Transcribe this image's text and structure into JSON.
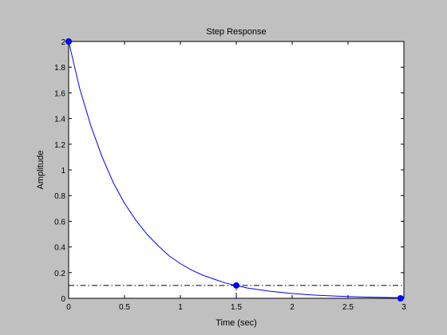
{
  "window": {
    "background": "#c0c0c0"
  },
  "chart_data": {
    "type": "line",
    "title": "Step Response",
    "xlabel": "Time (sec)",
    "ylabel": "Amplitude",
    "xlim": [
      0,
      3
    ],
    "ylim": [
      0,
      2
    ],
    "xticks": [
      0,
      0.5,
      1,
      1.5,
      2,
      2.5,
      3
    ],
    "xtick_labels": [
      "0",
      "0.5",
      "1",
      "1.5",
      "2",
      "2.5",
      "3"
    ],
    "yticks": [
      0,
      0.2,
      0.4,
      0.6,
      0.8,
      1,
      1.2,
      1.4,
      1.6,
      1.8,
      2
    ],
    "ytick_labels": [
      "0",
      "0.2",
      "0.4",
      "0.6",
      "0.8",
      "1",
      "1.2",
      "1.4",
      "1.6",
      "1.8",
      "2"
    ],
    "grid": false,
    "legend": "none",
    "series": [
      {
        "color": "#0000ff",
        "x": [
          0,
          0.1,
          0.2,
          0.3,
          0.4,
          0.5,
          0.6,
          0.7,
          0.8,
          0.9,
          1.0,
          1.1,
          1.2,
          1.3,
          1.4,
          1.5,
          1.6,
          1.8,
          2.0,
          2.2,
          2.4,
          2.6,
          2.8,
          3.0
        ],
        "y": [
          2.0,
          1.63,
          1.34,
          1.1,
          0.9,
          0.74,
          0.61,
          0.5,
          0.41,
          0.33,
          0.27,
          0.22,
          0.18,
          0.15,
          0.12,
          0.1,
          0.08,
          0.055,
          0.037,
          0.025,
          0.017,
          0.011,
          0.007,
          0.005
        ]
      }
    ],
    "markers": [
      {
        "x": 0,
        "y": 2.0
      },
      {
        "x": 1.5,
        "y": 0.1
      },
      {
        "x": 2.97,
        "y": 0.0
      }
    ],
    "reference_lines": [
      {
        "orientation": "horizontal",
        "y": 0.1,
        "style": "dash-dot"
      },
      {
        "orientation": "vertical",
        "x": 1.5,
        "y_to": 0.1,
        "style": "dash-dot"
      },
      {
        "orientation": "vertical",
        "x": 0,
        "y_to": 2.0,
        "style": "dash-dot"
      }
    ]
  }
}
